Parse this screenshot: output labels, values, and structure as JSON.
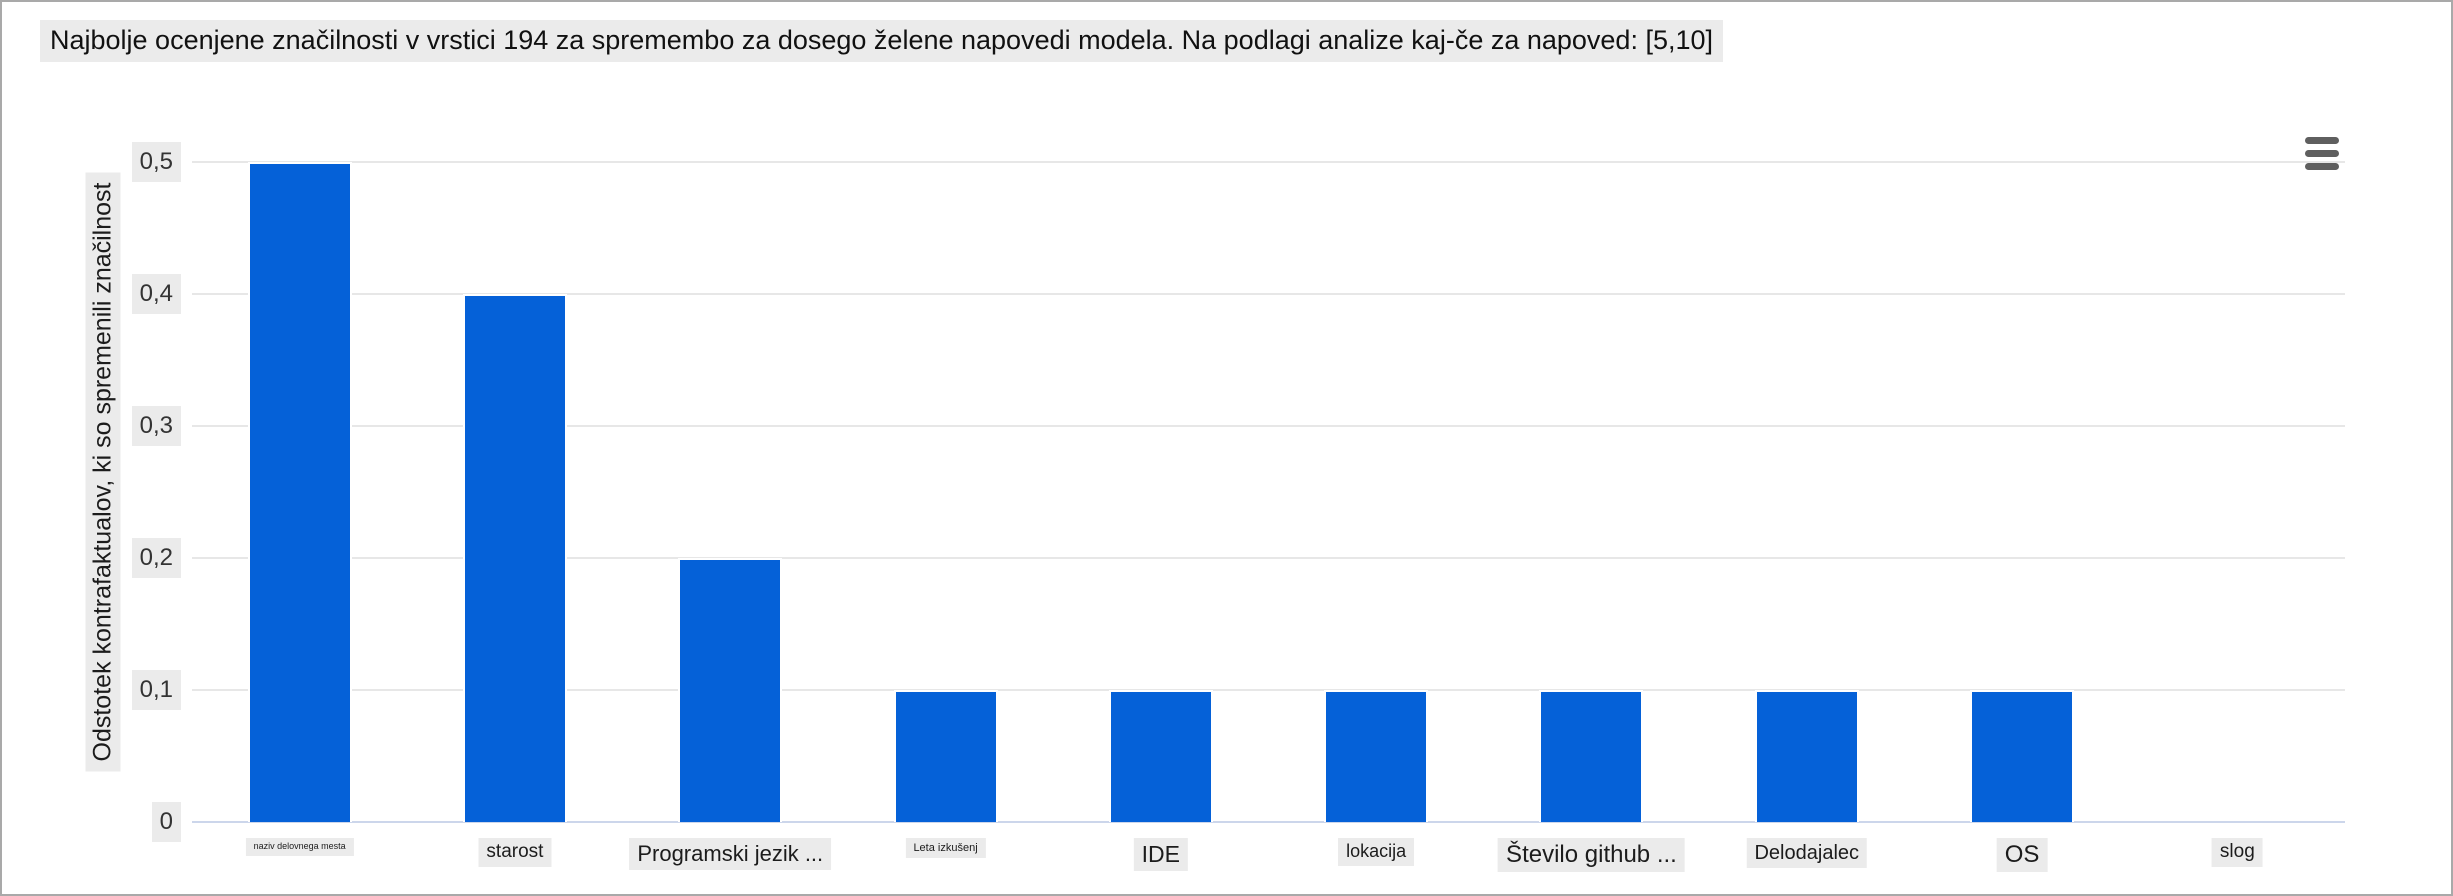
{
  "chart_data": {
    "type": "bar",
    "title": "Najbolje ocenjene značilnosti v vrstici 194 za spremembo za dosego želene napovedi modela. Na podlagi analize kaj-če za napoved: [5,10]",
    "xlabel": "",
    "ylabel": "Odstotek kontrafaktualov, ki so spremenili značilnost",
    "categories": [
      "naziv delovnega mesta",
      "starost",
      "Programski jezik ...",
      "Leta izkušenj",
      "IDE",
      "lokacija",
      "Število github ...",
      "Delodajalec",
      "OS",
      "slog"
    ],
    "values": [
      0.5,
      0.4,
      0.2,
      0.1,
      0.1,
      0.1,
      0.1,
      0.1,
      0.1,
      0
    ],
    "ytick_labels": [
      "0",
      "0,1",
      "0,2",
      "0,3",
      "0,4",
      "0,5"
    ],
    "ylim": [
      0,
      0.5
    ],
    "grid": true,
    "legend": false,
    "decimal_separator": ",",
    "bar_color": "#0561d8",
    "gridline_color": "#e7e7e7",
    "axis_line_color": "#ccd6eb",
    "label_background": "#ebebeb",
    "xlabel_font_px": [
      9,
      19,
      22,
      11,
      23,
      18,
      24,
      20,
      24,
      19
    ]
  },
  "toolbar": {
    "menu_icon": "hamburger-menu-icon"
  }
}
